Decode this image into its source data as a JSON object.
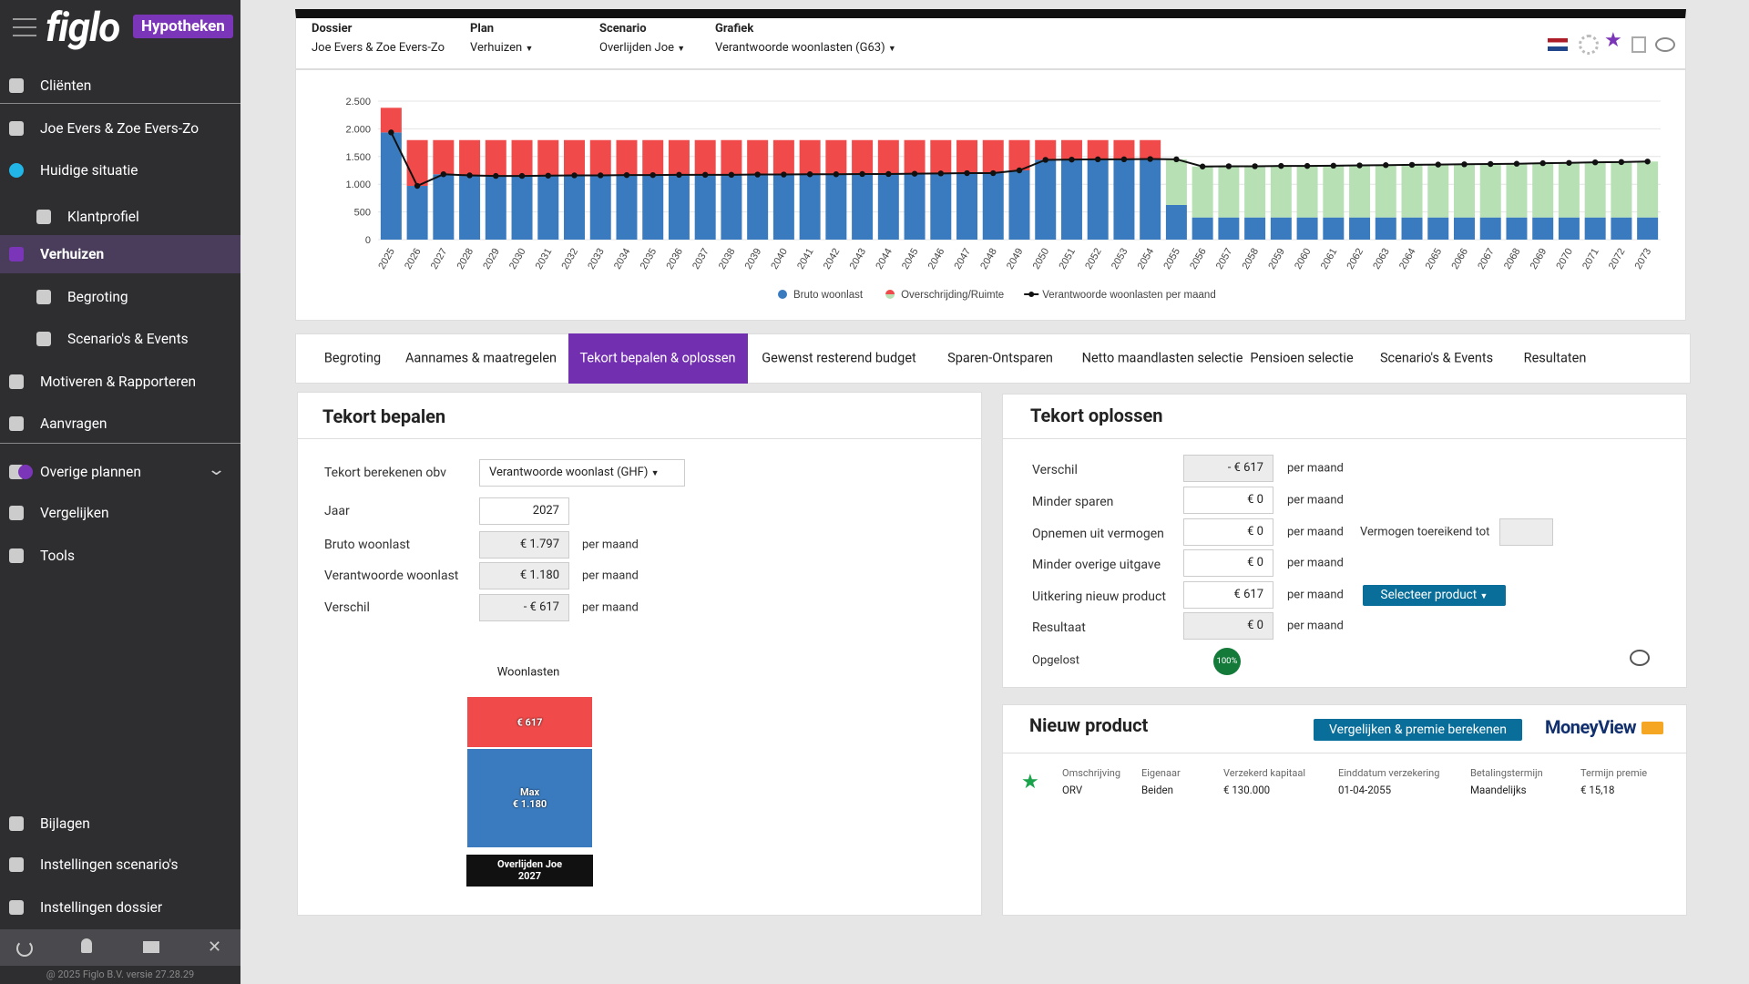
{
  "sidebar": {
    "logo": "figlo",
    "badge": "Hypotheken",
    "active": 4,
    "items": [
      "Cliënten",
      "Joe Evers & Zoe Evers-Zo",
      "Huidige situatie",
      "Klantprofiel",
      "Verhuizen",
      "Begroting",
      "Scenario's & Events",
      "Motiveren & Rapporteren",
      "Aanvragen",
      "Overige plannen",
      "Vergelijken",
      "Tools",
      "Bijlagen",
      "Instellingen scenario's",
      "Instellingen dossier"
    ],
    "footer": "@ 2025 Figlo B.V. versie 27.28.29"
  },
  "header": {
    "fields": [
      {
        "label": "Dossier",
        "value": "Joe Evers & Zoe Evers-Zo"
      },
      {
        "label": "Plan",
        "value": "Verhuizen"
      },
      {
        "label": "Scenario",
        "value": "Overlijden Joe"
      },
      {
        "label": "Grafiek",
        "value": "Verantwoorde woonlasten (G63)"
      }
    ]
  },
  "chart_data": [
    {
      "type": "bar",
      "stacked": true,
      "grid": true,
      "categories": [
        "2025",
        "2026",
        "2027",
        "2028",
        "2029",
        "2030",
        "2031",
        "2032",
        "2033",
        "2034",
        "2035",
        "2036",
        "2037",
        "2038",
        "2039",
        "2040",
        "2041",
        "2042",
        "2043",
        "2044",
        "2045",
        "2046",
        "2047",
        "2048",
        "2049",
        "2050",
        "2051",
        "2052",
        "2053",
        "2054",
        "2055",
        "2056",
        "2057",
        "2058",
        "2059",
        "2060",
        "2061",
        "2062",
        "2063",
        "2064",
        "2065",
        "2066",
        "2067",
        "2068",
        "2069",
        "2070",
        "2071",
        "2072",
        "2073"
      ],
      "ylim": [
        0,
        2500
      ],
      "yticks": [
        0,
        500,
        {
          "value": 1000,
          "label": "1.000"
        },
        {
          "value": 1500,
          "label": "1.500"
        },
        {
          "value": 2000,
          "label": "2.000"
        },
        {
          "value": 2500,
          "label": "2.500"
        }
      ],
      "series": [
        {
          "name": "Bruto woonlast",
          "color": "#3a7bbf",
          "values": [
            1935,
            970,
            1180,
            1160,
            1150,
            1150,
            1155,
            1160,
            1160,
            1165,
            1165,
            1170,
            1170,
            1170,
            1175,
            1175,
            1180,
            1180,
            1185,
            1185,
            1190,
            1195,
            1200,
            1200,
            1250,
            1440,
            1445,
            1450,
            1450,
            1455,
            625,
            400,
            400,
            400,
            400,
            400,
            400,
            400,
            400,
            400,
            400,
            400,
            400,
            400,
            400,
            400,
            400,
            400,
            400
          ]
        },
        {
          "name": "Overschrijding/Ruimte",
          "values": [
            445,
            827,
            617,
            637,
            647,
            647,
            642,
            637,
            637,
            632,
            632,
            627,
            627,
            627,
            622,
            622,
            617,
            617,
            612,
            612,
            607,
            602,
            597,
            597,
            547,
            357,
            352,
            347,
            347,
            342,
            825,
            920,
            925,
            925,
            930,
            930,
            935,
            940,
            945,
            950,
            955,
            960,
            965,
            970,
            980,
            985,
            995,
            1000,
            1010
          ],
          "colors": [
            "#f04a4a",
            "#f04a4a",
            "#f04a4a",
            "#f04a4a",
            "#f04a4a",
            "#f04a4a",
            "#f04a4a",
            "#f04a4a",
            "#f04a4a",
            "#f04a4a",
            "#f04a4a",
            "#f04a4a",
            "#f04a4a",
            "#f04a4a",
            "#f04a4a",
            "#f04a4a",
            "#f04a4a",
            "#f04a4a",
            "#f04a4a",
            "#f04a4a",
            "#f04a4a",
            "#f04a4a",
            "#f04a4a",
            "#f04a4a",
            "#f04a4a",
            "#f04a4a",
            "#f04a4a",
            "#f04a4a",
            "#f04a4a",
            "#f04a4a",
            "#b8e0b5",
            "#b8e0b5",
            "#b8e0b5",
            "#b8e0b5",
            "#b8e0b5",
            "#b8e0b5",
            "#b8e0b5",
            "#b8e0b5",
            "#b8e0b5",
            "#b8e0b5",
            "#b8e0b5",
            "#b8e0b5",
            "#b8e0b5",
            "#b8e0b5",
            "#b8e0b5",
            "#b8e0b5",
            "#b8e0b5",
            "#b8e0b5",
            "#b8e0b5"
          ]
        },
        {
          "name": "Verantwoorde woonlasten per maand",
          "type": "line",
          "color": "#111111",
          "values": [
            1935,
            970,
            1180,
            1160,
            1150,
            1150,
            1155,
            1160,
            1160,
            1165,
            1165,
            1170,
            1170,
            1170,
            1175,
            1175,
            1180,
            1180,
            1185,
            1185,
            1190,
            1195,
            1200,
            1200,
            1250,
            1440,
            1445,
            1450,
            1450,
            1455,
            1450,
            1320,
            1325,
            1325,
            1330,
            1330,
            1335,
            1340,
            1345,
            1350,
            1355,
            1360,
            1365,
            1370,
            1380,
            1385,
            1395,
            1400,
            1410
          ]
        }
      ]
    },
    {
      "type": "bar",
      "stacked": true,
      "title": "Woonlasten",
      "categories": [
        "Overlijden Joe 2027"
      ],
      "series": [
        {
          "color": "#3a7bbf",
          "values": [
            1180
          ],
          "value_labels": [
            "Max\n€ 1.180"
          ]
        },
        {
          "color": "#f04a4a",
          "values": [
            617
          ],
          "value_labels": [
            "€ 617"
          ]
        }
      ]
    }
  ],
  "tabs": {
    "active": 2,
    "items": [
      "Begroting",
      "Aannames & maatregelen",
      "Tekort bepalen & oplossen",
      "Gewenst resterend budget",
      "Sparen-Ontsparen",
      "Netto maandlasten selectie",
      "Pensioen selectie",
      "Scenario's & Events",
      "Resultaten"
    ]
  },
  "tekort_bepalen": {
    "title": "Tekort bepalen",
    "rows": [
      {
        "label": "Tekort berekenen obv",
        "value": "Verantwoorde woonlast (GHF)"
      },
      {
        "label": "Jaar",
        "value": "2027"
      },
      {
        "label": "Bruto woonlast",
        "value": "€ 1.797",
        "unit": "per maand"
      },
      {
        "label": "Verantwoorde woonlast",
        "value": "€ 1.180",
        "unit": "per maand"
      },
      {
        "label": "Verschil",
        "value": "- € 617",
        "unit": "per maand"
      }
    ]
  },
  "tekort_oplossen": {
    "title": "Tekort oplossen",
    "rows": [
      {
        "label": "Verschil",
        "value": "- € 617",
        "unit": "per maand"
      },
      {
        "label": "Minder sparen",
        "value": "€ 0",
        "unit": "per maand"
      },
      {
        "label": "Opnemen uit vermogen",
        "value": "€ 0",
        "unit": "per maand",
        "extra_label": "Vermogen toereikend tot"
      },
      {
        "label": "Minder overige uitgave",
        "value": "€ 0",
        "unit": "per maand"
      },
      {
        "label": "Uitkering nieuw product",
        "value": "€ 617",
        "unit": "per maand",
        "button": "Selecteer product"
      },
      {
        "label": "Resultaat",
        "value": "€ 0",
        "unit": "per maand"
      }
    ],
    "solved_label": "Opgelost",
    "solved_value": "100%"
  },
  "nieuw_product": {
    "title": "Nieuw product",
    "button": "Vergelijken & premie berekenen",
    "brand": "MoneyView",
    "columns": [
      {
        "label": "Omschrijving",
        "value": "ORV"
      },
      {
        "label": "Eigenaar",
        "value": "Beiden"
      },
      {
        "label": "Verzekerd kapitaal",
        "value": "€ 130.000"
      },
      {
        "label": "Einddatum verzekering",
        "value": "01-04-2055"
      },
      {
        "label": "Betalingstermijn",
        "value": "Maandelijks"
      },
      {
        "label": "Termijn premie",
        "value": "€ 15,18"
      }
    ]
  }
}
